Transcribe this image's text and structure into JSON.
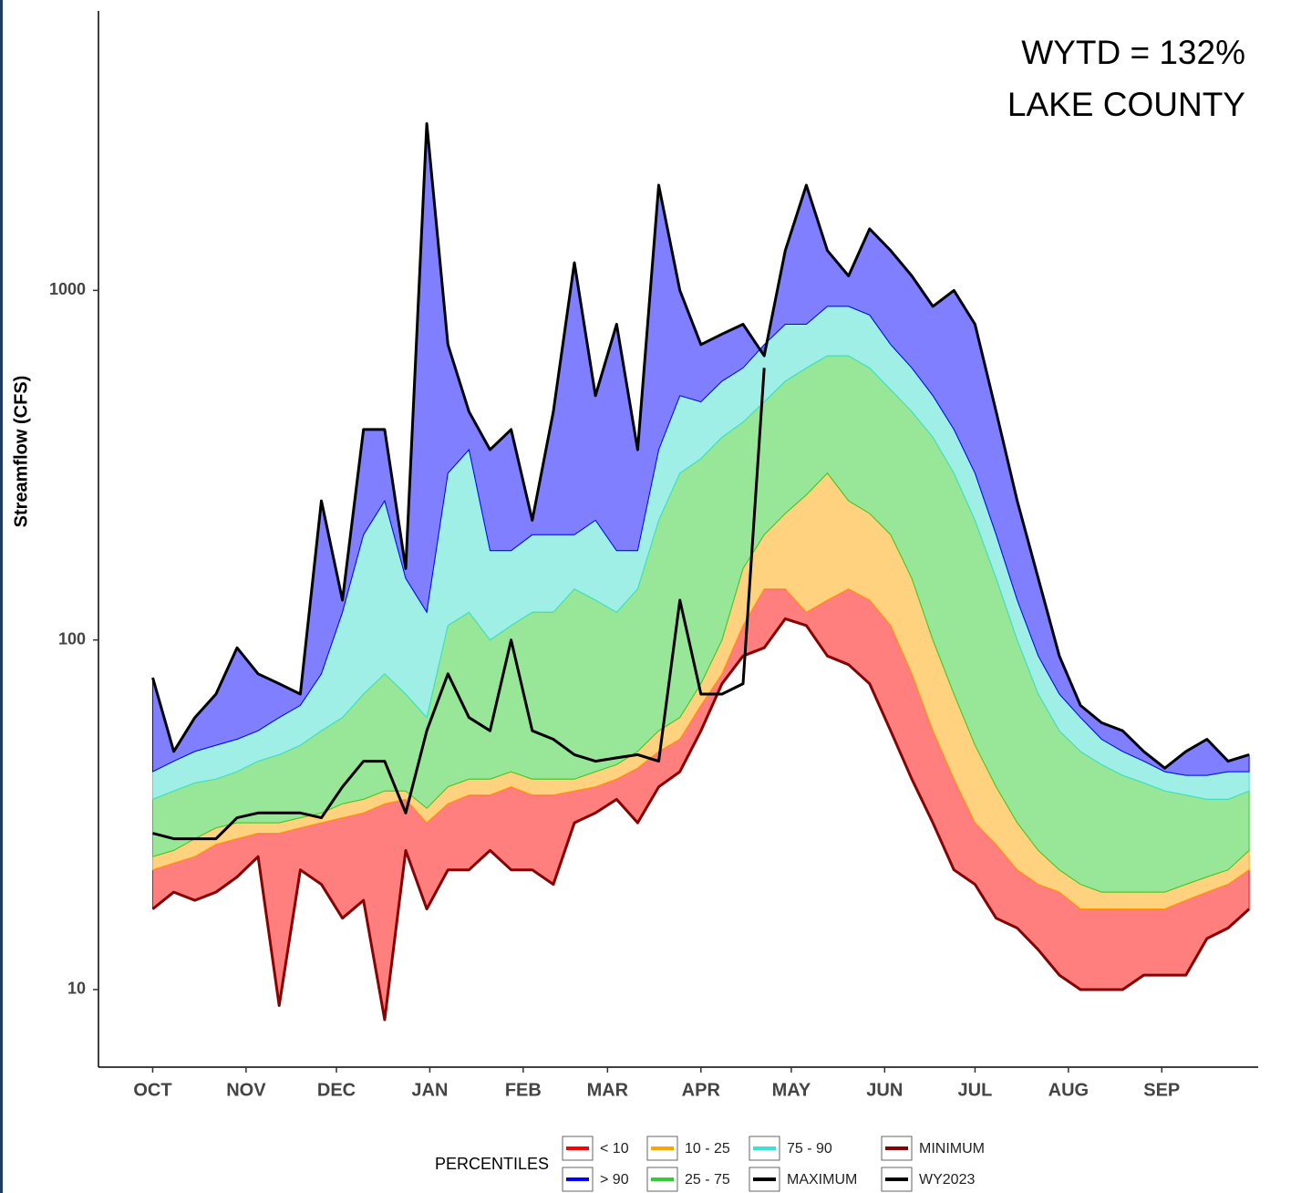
{
  "chart_data": {
    "type": "area",
    "ylabel": "Streamflow (CFS)",
    "log_scale": true,
    "grid": false,
    "annotations": [
      "WYTD = 132%",
      "LAKE COUNTY"
    ],
    "legend_title": "PERCENTILES",
    "xlim": [
      -18,
      367
    ],
    "xticks": [
      {
        "value": 0,
        "label": "OCT"
      },
      {
        "value": 31,
        "label": "NOV"
      },
      {
        "value": 61,
        "label": "DEC"
      },
      {
        "value": 92,
        "label": "JAN"
      },
      {
        "value": 123,
        "label": "FEB"
      },
      {
        "value": 151,
        "label": "MAR"
      },
      {
        "value": 182,
        "label": "APR"
      },
      {
        "value": 212,
        "label": "MAY"
      },
      {
        "value": 243,
        "label": "JUN"
      },
      {
        "value": 273,
        "label": "JUL"
      },
      {
        "value": 304,
        "label": "AUG"
      },
      {
        "value": 335,
        "label": "SEP"
      }
    ],
    "ylim": [
      6,
      6300
    ],
    "yticks": [
      10,
      100,
      1000
    ],
    "x": [
      0,
      7,
      14,
      21,
      28,
      35,
      42,
      49,
      56,
      63,
      70,
      77,
      84,
      91,
      98,
      105,
      112,
      119,
      126,
      133,
      140,
      147,
      154,
      161,
      168,
      175,
      182,
      189,
      196,
      203,
      210,
      217,
      224,
      231,
      238,
      245,
      252,
      259,
      266,
      273,
      280,
      287,
      294,
      301,
      308,
      315,
      322,
      329,
      336,
      343,
      350,
      357,
      364
    ],
    "series": [
      {
        "name": "< 10",
        "color": "#ff0000",
        "values": [
          22,
          23,
          24,
          26,
          27,
          28,
          28,
          29,
          30,
          31,
          32,
          34,
          35,
          30,
          34,
          36,
          36,
          38,
          36,
          36,
          37,
          38,
          40,
          43,
          48,
          52,
          65,
          80,
          110,
          140,
          140,
          120,
          130,
          140,
          130,
          110,
          80,
          55,
          40,
          30,
          26,
          22,
          20,
          19,
          17,
          17,
          17,
          17,
          17,
          18,
          19,
          20,
          22
        ]
      },
      {
        "name": "> 90",
        "color": "#0000ff"
      },
      {
        "name": "10 - 25",
        "color": "#ffa500",
        "values": [
          24,
          25,
          27,
          29,
          30,
          30,
          30,
          31,
          32,
          34,
          35,
          37,
          37,
          33,
          38,
          40,
          40,
          42,
          40,
          40,
          40,
          42,
          44,
          48,
          55,
          60,
          75,
          100,
          160,
          200,
          230,
          260,
          300,
          250,
          230,
          200,
          150,
          100,
          70,
          50,
          38,
          30,
          25,
          22,
          20,
          19,
          19,
          19,
          19,
          20,
          21,
          22,
          25
        ]
      },
      {
        "name": "25 - 75",
        "color": "#32cd32",
        "values": [
          35,
          37,
          39,
          40,
          42,
          45,
          47,
          50,
          55,
          60,
          70,
          80,
          70,
          60,
          110,
          120,
          100,
          110,
          120,
          120,
          140,
          130,
          120,
          140,
          220,
          300,
          330,
          380,
          420,
          480,
          550,
          600,
          650,
          650,
          600,
          520,
          450,
          380,
          300,
          220,
          150,
          100,
          70,
          55,
          48,
          44,
          41,
          39,
          37,
          36,
          35,
          35,
          37
        ]
      },
      {
        "name": "75 - 90",
        "color": "#40e0d0",
        "values": [
          42,
          45,
          48,
          50,
          52,
          55,
          60,
          65,
          80,
          120,
          200,
          250,
          150,
          120,
          300,
          350,
          180,
          180,
          200,
          200,
          200,
          220,
          180,
          180,
          350,
          500,
          480,
          550,
          600,
          700,
          800,
          800,
          900,
          900,
          850,
          700,
          600,
          500,
          400,
          300,
          200,
          130,
          90,
          70,
          60,
          52,
          48,
          45,
          42,
          41,
          41,
          42,
          42
        ]
      },
      {
        "name": "MAXIMUM",
        "color": "#000000",
        "values": [
          78,
          48,
          60,
          70,
          95,
          80,
          75,
          70,
          250,
          130,
          400,
          400,
          160,
          3000,
          700,
          450,
          350,
          400,
          220,
          450,
          1200,
          500,
          800,
          350,
          2000,
          1000,
          700,
          750,
          800,
          650,
          1300,
          2000,
          1300,
          1100,
          1500,
          1300,
          1100,
          900,
          1000,
          800,
          450,
          250,
          150,
          90,
          65,
          58,
          55,
          48,
          43,
          48,
          52,
          45,
          47
        ]
      },
      {
        "name": "MINIMUM",
        "color": "#8b0000",
        "values": [
          17,
          19,
          18,
          19,
          21,
          24,
          9,
          22,
          20,
          16,
          18,
          8.2,
          25,
          17,
          22,
          22,
          25,
          22,
          22,
          20,
          30,
          32,
          35,
          30,
          38,
          42,
          55,
          75,
          90,
          95,
          115,
          110,
          90,
          85,
          75,
          55,
          40,
          30,
          22,
          20,
          16,
          15,
          13,
          11,
          10,
          10,
          10,
          11,
          11,
          11,
          14,
          15,
          17
        ]
      },
      {
        "name": "WY2023",
        "color": "#000000",
        "values": [
          28,
          27,
          27,
          27,
          31,
          32,
          32,
          32,
          31,
          38,
          45,
          45,
          32,
          55,
          80,
          60,
          55,
          100,
          55,
          52,
          47,
          45,
          46,
          47,
          45,
          130,
          70,
          70,
          75,
          600,
          null,
          null,
          null,
          null,
          null,
          null,
          null,
          null,
          null,
          null,
          null,
          null,
          null,
          null,
          null,
          null,
          null,
          null,
          null,
          null,
          null,
          null,
          null
        ]
      }
    ]
  }
}
